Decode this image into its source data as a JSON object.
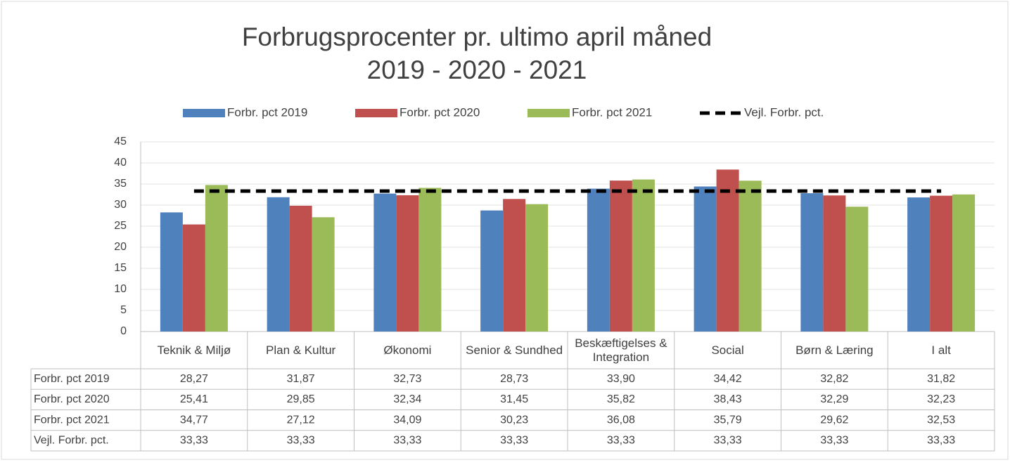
{
  "chart_data": {
    "type": "bar",
    "title": [
      "Forbrugsprocenter pr. ultimo april måned",
      "2019 - 2020 - 2021"
    ],
    "categories": [
      "Teknik & Miljø",
      "Plan & Kultur",
      "Økonomi",
      "Senior & Sundhed",
      "Beskæftigelses & Integration",
      "Social",
      "Børn & Læring",
      "I alt"
    ],
    "series": [
      {
        "name": "Forbr. pct 2019",
        "color": "#4f81bd",
        "values": [
          28.27,
          31.87,
          32.73,
          28.73,
          33.9,
          34.42,
          32.82,
          31.82
        ],
        "value_labels": [
          "28,27",
          "31,87",
          "32,73",
          "28,73",
          "33,90",
          "34,42",
          "32,82",
          "31,82"
        ]
      },
      {
        "name": "Forbr. pct 2020",
        "color": "#c0504d",
        "values": [
          25.41,
          29.85,
          32.34,
          31.45,
          35.82,
          38.43,
          32.29,
          32.23
        ],
        "value_labels": [
          "25,41",
          "29,85",
          "32,34",
          "31,45",
          "35,82",
          "38,43",
          "32,29",
          "32,23"
        ]
      },
      {
        "name": "Forbr. pct 2021",
        "color": "#9bbb59",
        "values": [
          34.77,
          27.12,
          34.09,
          30.23,
          36.08,
          35.79,
          29.62,
          32.53
        ],
        "value_labels": [
          "34,77",
          "27,12",
          "34,09",
          "30,23",
          "36,08",
          "35,79",
          "29,62",
          "32,53"
        ]
      },
      {
        "name": "Vejl. Forbr. pct.",
        "color": "#000000",
        "type": "line",
        "line_style": "dashed",
        "values": [
          33.33,
          33.33,
          33.33,
          33.33,
          33.33,
          33.33,
          33.33,
          33.33
        ],
        "value_labels": [
          "33,33",
          "33,33",
          "33,33",
          "33,33",
          "33,33",
          "33,33",
          "33,33",
          "33,33"
        ]
      }
    ],
    "ylim": [
      0,
      45
    ],
    "yticks": [
      0,
      5,
      10,
      15,
      20,
      25,
      30,
      35,
      40,
      45
    ],
    "grid": true,
    "legend": "top",
    "data_table": true
  }
}
